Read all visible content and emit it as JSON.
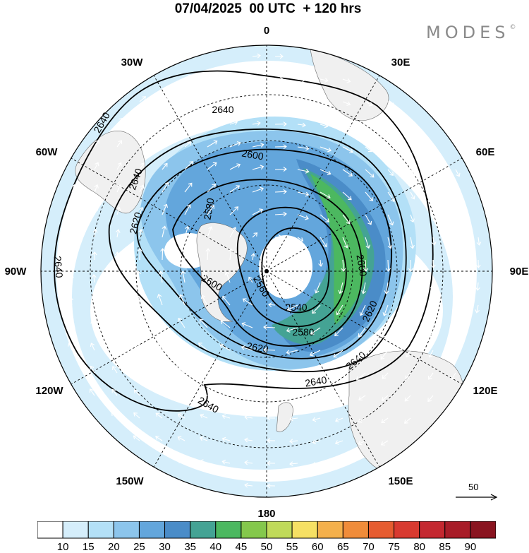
{
  "header": {
    "title": "07/04/2025  00 UTC  + 120 hrs",
    "brand": "MODES",
    "brand_mark": "©"
  },
  "map": {
    "projection": "polar-stereographic-south",
    "longitude_labels": [
      "0",
      "30E",
      "60E",
      "90E",
      "120E",
      "150E",
      "180",
      "150W",
      "120W",
      "90W",
      "60W",
      "30W"
    ],
    "contour_labels": [
      "2640",
      "2640",
      "2640",
      "2640",
      "2640",
      "2640",
      "2640",
      "2620",
      "2620",
      "2620",
      "2600",
      "2600",
      "2600",
      "2580",
      "2580",
      "2560",
      "2540"
    ],
    "land_color": "#f0f0f0",
    "contour_color": "#000000",
    "vector_color": "#ffffff"
  },
  "reference_vector": {
    "value": "50"
  },
  "colorbar": {
    "labels": [
      "10",
      "15",
      "20",
      "25",
      "30",
      "35",
      "40",
      "45",
      "50",
      "55",
      "60",
      "65",
      "70",
      "75",
      "80",
      "85",
      "90"
    ],
    "colors": [
      "#ffffff",
      "#d5eefb",
      "#b3e0f7",
      "#8cc5ec",
      "#63a6dc",
      "#4a8cc8",
      "#44a394",
      "#4cb860",
      "#84c84c",
      "#c0da5a",
      "#f6e064",
      "#f4b04c",
      "#f08c3a",
      "#e65c30",
      "#d83a30",
      "#c42830",
      "#a81c28",
      "#8a1420"
    ]
  }
}
